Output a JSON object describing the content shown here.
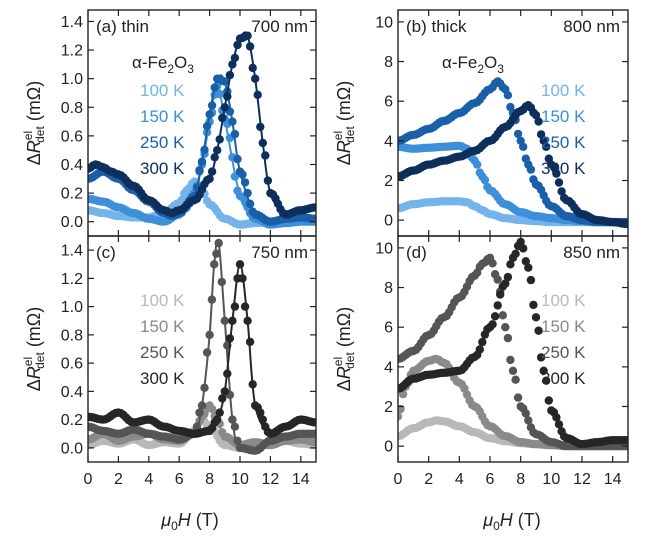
{
  "figure": {
    "x_axis_label_mu": "μ",
    "x_axis_label_sub0": "0",
    "x_axis_label_rest": "H (T)",
    "y_axis_label_delta": "ΔR",
    "y_axis_label_sup": "el",
    "y_axis_label_sub": "det",
    "y_axis_label_unit": " (mΩ)"
  },
  "chart_data": [
    {
      "id": "a",
      "type": "scatter",
      "panel_label": "(a)",
      "sample_label": "thin",
      "wavelength_label": "700 nm",
      "material_label_prefix": "α-Fe",
      "material_label_sub": "2",
      "material_label_mid": "O",
      "material_label_sub2": "3",
      "xlim": [
        0,
        15
      ],
      "ylim": [
        -0.1,
        1.48
      ],
      "xticks": [
        0,
        2,
        4,
        6,
        8,
        10,
        12,
        14
      ],
      "yticks": [
        0.0,
        0.2,
        0.4,
        0.6,
        0.8,
        1.0,
        1.2,
        1.4
      ],
      "ytick_decimals": 1,
      "show_x_tick_labels": false,
      "legend_position": "left",
      "series": [
        {
          "name": "100 K",
          "color": "#74b4ea",
          "fit": true,
          "x": [
            0,
            1,
            2,
            3,
            4,
            5,
            6,
            6.5,
            7,
            7.5,
            8,
            9,
            10,
            11,
            12,
            13,
            14,
            15
          ],
          "y": [
            0.08,
            0.06,
            0.04,
            0.03,
            0.03,
            0.06,
            0.13,
            0.22,
            0.28,
            0.22,
            0.12,
            0.02,
            -0.02,
            -0.01,
            0.0,
            0.01,
            0.01,
            0.01
          ]
        },
        {
          "name": "150 K",
          "color": "#3d8fd9",
          "fit": true,
          "x": [
            0,
            1,
            2,
            3,
            4,
            5,
            6,
            6.5,
            7,
            7.5,
            8,
            8.5,
            9,
            10,
            11,
            12,
            13,
            14,
            15
          ],
          "y": [
            0.16,
            0.14,
            0.1,
            0.06,
            0.02,
            0.0,
            0.05,
            0.1,
            0.2,
            0.4,
            0.7,
            0.95,
            0.72,
            0.18,
            0.02,
            -0.02,
            -0.01,
            0.0,
            0.0
          ]
        },
        {
          "name": "250 K",
          "color": "#1a5fa8",
          "fit": true,
          "x": [
            0,
            1,
            2,
            3,
            4,
            5,
            5.5,
            6,
            7,
            7.5,
            8,
            8.5,
            9,
            9.5,
            10,
            11,
            12,
            13,
            14,
            15
          ],
          "y": [
            0.3,
            0.35,
            0.3,
            0.22,
            0.14,
            0.06,
            0.04,
            0.06,
            0.18,
            0.42,
            0.75,
            1.0,
            0.98,
            0.7,
            0.35,
            0.05,
            0.0,
            0.02,
            0.03,
            0.02
          ]
        },
        {
          "name": "300 K",
          "color": "#0e2f5c",
          "fit": true,
          "x": [
            0,
            0.5,
            1,
            1.5,
            2,
            3,
            4,
            5,
            5.5,
            6,
            7,
            8,
            8.5,
            9,
            9.5,
            10,
            10.5,
            11,
            11.5,
            12,
            13,
            14,
            15
          ],
          "y": [
            0.37,
            0.4,
            0.38,
            0.35,
            0.33,
            0.25,
            0.15,
            0.08,
            0.06,
            0.08,
            0.15,
            0.3,
            0.5,
            0.8,
            1.1,
            1.28,
            1.3,
            1.0,
            0.55,
            0.2,
            0.05,
            0.08,
            0.1
          ]
        }
      ]
    },
    {
      "id": "b",
      "type": "scatter",
      "panel_label": "(b)",
      "sample_label": "thick",
      "wavelength_label": "800 nm",
      "material_label_prefix": "α-Fe",
      "material_label_sub": "2",
      "material_label_mid": "O",
      "material_label_sub2": "3",
      "xlim": [
        0,
        15
      ],
      "ylim": [
        -0.8,
        10.6
      ],
      "xticks": [
        0,
        2,
        4,
        6,
        8,
        10,
        12,
        14
      ],
      "yticks": [
        0,
        2,
        4,
        6,
        8,
        10
      ],
      "ytick_decimals": 0,
      "show_x_tick_labels": false,
      "legend_position": "right",
      "series": [
        {
          "name": "100 K",
          "color": "#74b4ea",
          "fit": false,
          "x": [
            0,
            1,
            2,
            3,
            4,
            4.5,
            5,
            5.5,
            6,
            7,
            8,
            9,
            10,
            11,
            12,
            13,
            14,
            15
          ],
          "y": [
            0.6,
            0.8,
            0.9,
            0.95,
            0.95,
            0.9,
            0.7,
            0.5,
            0.3,
            0.1,
            0.0,
            -0.05,
            -0.1,
            -0.1,
            -0.1,
            -0.1,
            -0.1,
            -0.1
          ]
        },
        {
          "name": "150 K",
          "color": "#3d8fd9",
          "fit": false,
          "x": [
            0,
            1,
            2,
            3,
            4,
            4.5,
            5,
            5.5,
            6,
            7,
            8,
            9,
            10,
            11,
            12,
            13,
            14,
            15
          ],
          "y": [
            3.7,
            3.6,
            3.65,
            3.7,
            3.75,
            3.6,
            3.0,
            2.2,
            1.5,
            0.8,
            0.4,
            0.2,
            0.1,
            0.0,
            -0.05,
            -0.1,
            -0.1,
            -0.1
          ]
        },
        {
          "name": "250 K",
          "color": "#1a5fa8",
          "fit": false,
          "x": [
            0,
            1,
            2,
            3,
            4,
            5,
            6,
            6.5,
            7,
            7.5,
            8,
            8.5,
            9,
            10,
            11,
            12,
            13,
            14,
            15
          ],
          "y": [
            4.0,
            4.3,
            4.6,
            5.0,
            5.4,
            5.9,
            6.6,
            7.0,
            6.6,
            5.4,
            4.0,
            2.8,
            1.8,
            0.7,
            0.2,
            0.0,
            -0.1,
            -0.1,
            -0.1
          ]
        },
        {
          "name": "300 K",
          "color": "#0e2f5c",
          "fit": false,
          "x": [
            0,
            1,
            2,
            3,
            4,
            5,
            6,
            7,
            8,
            8.5,
            9,
            9.5,
            10,
            11,
            12,
            13,
            14,
            15
          ],
          "y": [
            2.2,
            2.5,
            2.8,
            3.0,
            3.2,
            3.5,
            4.0,
            4.7,
            5.5,
            5.8,
            5.3,
            4.0,
            2.8,
            1.0,
            0.3,
            0.0,
            -0.1,
            -0.2
          ]
        }
      ]
    },
    {
      "id": "c",
      "type": "scatter",
      "panel_label": "(c)",
      "sample_label": "",
      "wavelength_label": "750 nm",
      "xlim": [
        0,
        15
      ],
      "ylim": [
        -0.1,
        1.5
      ],
      "xticks": [
        0,
        2,
        4,
        6,
        8,
        10,
        12,
        14
      ],
      "yticks": [
        0.0,
        0.2,
        0.4,
        0.6,
        0.8,
        1.0,
        1.2,
        1.4
      ],
      "ytick_decimals": 1,
      "show_x_tick_labels": true,
      "legend_position": "left",
      "series": [
        {
          "name": "100 K",
          "color": "#b8b8b8",
          "fit": true,
          "x": [
            0,
            1,
            2,
            3,
            4,
            5,
            6,
            7,
            7.5,
            8,
            9,
            10,
            11,
            12,
            13,
            14,
            15
          ],
          "y": [
            0.02,
            0.05,
            0.03,
            0.06,
            0.02,
            0.04,
            0.03,
            0.12,
            0.2,
            0.15,
            0.02,
            0.0,
            0.03,
            0.02,
            0.05,
            0.03,
            0.02
          ]
        },
        {
          "name": "150 K",
          "color": "#8a8a8a",
          "fit": true,
          "x": [
            0,
            1,
            2,
            3,
            4,
            5,
            6,
            7,
            7.5,
            8,
            8.5,
            9,
            10,
            11,
            12,
            13,
            14,
            15
          ],
          "y": [
            0.06,
            0.1,
            0.05,
            0.08,
            0.1,
            0.06,
            0.05,
            0.1,
            0.22,
            0.3,
            0.2,
            0.08,
            0.02,
            0.04,
            0.02,
            0.05,
            0.06,
            0.04
          ]
        },
        {
          "name": "250 K",
          "color": "#555555",
          "fit": true,
          "x": [
            0,
            1,
            2,
            3,
            4,
            5,
            6,
            7,
            7.5,
            8,
            8.3,
            8.6,
            9,
            9.5,
            10,
            11,
            12,
            13,
            14,
            15
          ],
          "y": [
            0.15,
            0.12,
            0.1,
            0.13,
            0.1,
            0.08,
            0.06,
            0.1,
            0.3,
            0.8,
            1.3,
            1.45,
            0.9,
            0.2,
            0.0,
            -0.02,
            0.05,
            0.08,
            0.1,
            0.1
          ]
        },
        {
          "name": "300 K",
          "color": "#262626",
          "fit": true,
          "x": [
            0,
            1,
            2,
            3,
            4,
            5,
            6,
            7,
            8,
            8.5,
            9,
            9.5,
            10,
            10.5,
            11,
            12,
            13,
            14,
            15
          ],
          "y": [
            0.22,
            0.2,
            0.25,
            0.18,
            0.2,
            0.15,
            0.12,
            0.1,
            0.12,
            0.2,
            0.4,
            0.9,
            1.3,
            0.9,
            0.3,
            0.1,
            0.15,
            0.2,
            0.18
          ]
        }
      ]
    },
    {
      "id": "d",
      "type": "scatter",
      "panel_label": "(d)",
      "sample_label": "",
      "wavelength_label": "850 nm",
      "xlim": [
        0,
        15
      ],
      "ylim": [
        -0.8,
        10.6
      ],
      "xticks": [
        0,
        2,
        4,
        6,
        8,
        10,
        12,
        14
      ],
      "yticks": [
        0,
        2,
        4,
        6,
        8,
        10
      ],
      "ytick_decimals": 0,
      "show_x_tick_labels": true,
      "legend_position": "right",
      "series": [
        {
          "name": "100 K",
          "color": "#b8b8b8",
          "fit": false,
          "x": [
            0,
            1,
            2,
            2.5,
            3,
            4,
            5,
            6,
            7,
            8,
            9,
            10,
            11,
            12,
            13,
            14,
            15
          ],
          "y": [
            0.5,
            0.9,
            1.2,
            1.3,
            1.25,
            1.0,
            0.7,
            0.4,
            0.25,
            0.15,
            0.1,
            0.05,
            0.05,
            0.0,
            0.0,
            0.0,
            0.0
          ]
        },
        {
          "name": "150 K",
          "color": "#8a8a8a",
          "fit": false,
          "x": [
            0,
            0.5,
            1,
            2,
            2.5,
            3,
            4,
            5,
            6,
            7,
            8,
            9,
            10,
            11,
            12,
            13,
            14,
            15
          ],
          "y": [
            1.5,
            3.0,
            3.8,
            4.3,
            4.4,
            4.2,
            3.2,
            2.0,
            1.0,
            0.5,
            0.2,
            0.1,
            0.05,
            0.0,
            0.0,
            0.0,
            0.0,
            0.0
          ]
        },
        {
          "name": "250 K",
          "color": "#555555",
          "fit": false,
          "x": [
            0,
            1,
            2,
            3,
            4,
            5,
            5.5,
            6,
            6.5,
            7,
            7.5,
            8,
            9,
            10,
            11,
            12,
            13,
            14,
            15
          ],
          "y": [
            4.4,
            4.8,
            5.6,
            6.5,
            7.5,
            8.6,
            9.2,
            9.5,
            8.4,
            6.0,
            3.8,
            2.0,
            0.6,
            0.2,
            0.0,
            0.0,
            0.0,
            0.0,
            0.0
          ]
        },
        {
          "name": "300 K",
          "color": "#262626",
          "fit": false,
          "x": [
            0,
            1,
            2,
            3,
            4,
            5,
            6,
            7,
            7.5,
            8,
            8.5,
            9,
            9.5,
            10,
            11,
            12,
            13,
            14,
            15
          ],
          "y": [
            2.9,
            3.4,
            3.6,
            3.7,
            3.8,
            4.5,
            6.0,
            8.2,
            9.5,
            10.3,
            9.0,
            6.5,
            3.8,
            1.8,
            0.4,
            0.1,
            0.2,
            0.3,
            0.3
          ]
        }
      ]
    }
  ]
}
